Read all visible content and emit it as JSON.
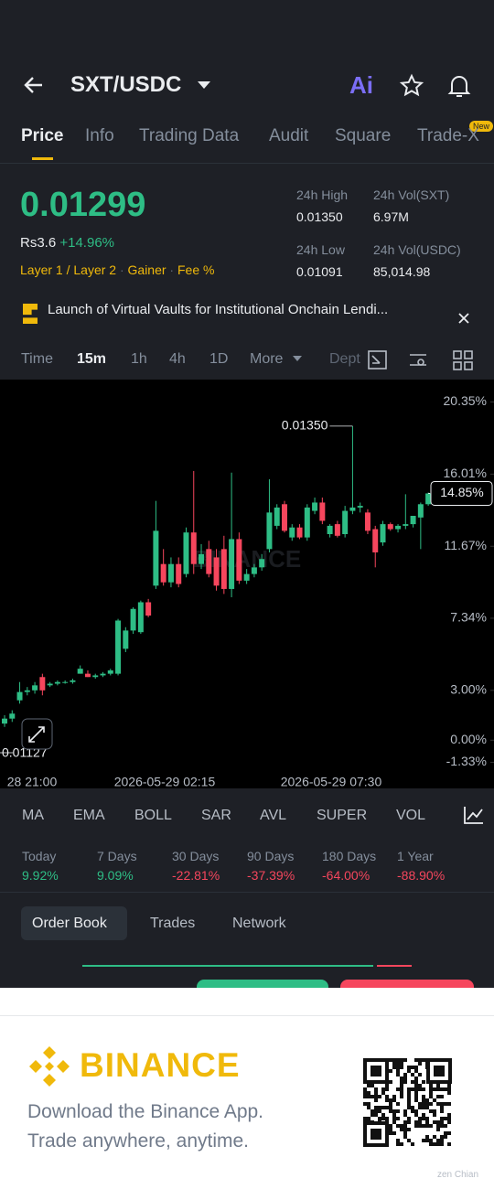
{
  "header": {
    "pair": "SXT/USDC",
    "ai": "Ai",
    "tabs": [
      "Price",
      "Info",
      "Trading Data",
      "Audit",
      "Square",
      "Trade-X"
    ],
    "new_badge": "New"
  },
  "price": {
    "last": "0.01299",
    "fiat": "Rs3.6",
    "change": "+14.96%",
    "tags": [
      "Layer 1 / Layer 2",
      "Gainer",
      "Fee %"
    ],
    "stats": [
      {
        "label": "24h High",
        "value": "0.01350"
      },
      {
        "label": "24h Vol(SXT)",
        "value": "6.97M"
      },
      {
        "label": "24h Low",
        "value": "0.01091"
      },
      {
        "label": "24h Vol(USDC)",
        "value": "85,014.98"
      }
    ]
  },
  "news": "Launch of Virtual Vaults for Institutional Onchain Lendi...",
  "intervals": [
    "Time",
    "15m",
    "1h",
    "4h",
    "1D",
    "More",
    "Dept"
  ],
  "chart_data": {
    "type": "candlestick",
    "up_color": "#2ebd85",
    "down_color": "#f6465d",
    "watermark": "BINANCE",
    "ylim": [
      -2.9,
      21.7
    ],
    "yticks": [
      {
        "value": 20.35,
        "label": "20.35%"
      },
      {
        "value": 16.01,
        "label": "16.01%"
      },
      {
        "value": 11.67,
        "label": "11.67%"
      },
      {
        "value": 7.34,
        "label": "7.34%"
      },
      {
        "value": 3.0,
        "label": "3.00%"
      },
      {
        "value": 0,
        "label": "0.00%"
      },
      {
        "value": -1.33,
        "label": "-1.33%"
      }
    ],
    "x_labels": [
      "28 21:00",
      "2026-05-29 02:15",
      "2026-05-29 07:30"
    ],
    "high_label": "0.01350",
    "low_label": "0.01127",
    "last_label": "14.85%",
    "open": [
      1.0,
      1.3,
      2.4,
      2.9,
      3.0,
      3.8,
      3.3,
      3.4,
      3.5,
      3.5,
      4.0,
      4.0,
      3.8,
      3.9,
      4.0,
      4.0,
      5.5,
      6.6,
      6.5,
      8.3,
      9.3,
      10.6,
      9.5,
      10.6,
      10.0,
      12.5,
      10.6,
      11.5,
      11.0,
      11.5,
      9.1,
      12.1,
      9.6,
      10.0,
      10.4,
      11.5,
      12.9,
      14.2,
      12.2,
      12.8,
      12.2,
      13.8,
      14.3,
      12.4,
      13.0,
      12.4,
      13.8,
      14.0,
      13.7,
      12.7,
      11.9,
      13.0,
      12.7,
      12.9,
      13.0,
      13.4,
      14.2
    ],
    "high": [
      1.5,
      1.8,
      3.5,
      3.2,
      3.5,
      4.0,
      3.5,
      3.6,
      3.6,
      3.7,
      4.5,
      4.2,
      4.0,
      4.1,
      4.3,
      7.3,
      6.8,
      8.0,
      8.4,
      8.5,
      14.4,
      11.5,
      11.0,
      11.0,
      12.8,
      16.2,
      11.8,
      12.0,
      11.5,
      12.3,
      16.1,
      12.5,
      10.3,
      10.6,
      11.2,
      15.7,
      14.2,
      14.4,
      13.0,
      13.0,
      14.2,
      14.6,
      14.6,
      13.0,
      13.2,
      14.1,
      18.9,
      14.3,
      13.9,
      12.9,
      13.2,
      13.1,
      13.0,
      14.8,
      13.5,
      14.3,
      14.9
    ],
    "low": [
      0.8,
      1.1,
      2.2,
      2.7,
      2.8,
      2.7,
      3.2,
      3.3,
      3.4,
      3.4,
      4.0,
      3.8,
      3.7,
      3.8,
      3.9,
      3.9,
      5.3,
      6.4,
      6.4,
      7.4,
      9.1,
      9.3,
      9.2,
      9.2,
      9.8,
      10.0,
      10.3,
      9.8,
      9.0,
      8.8,
      8.6,
      9.4,
      9.4,
      9.8,
      10.2,
      11.3,
      12.7,
      12.5,
      12.0,
      12.1,
      12.0,
      13.6,
      13.0,
      12.2,
      12.2,
      12.2,
      13.6,
      13.7,
      12.4,
      10.4,
      11.7,
      12.6,
      12.5,
      12.7,
      12.8,
      11.5,
      14.1
    ],
    "close": [
      1.3,
      1.6,
      2.9,
      3.0,
      3.3,
      3.0,
      3.4,
      3.5,
      3.5,
      3.6,
      4.3,
      3.8,
      3.9,
      4.0,
      4.2,
      7.2,
      6.6,
      7.9,
      8.3,
      7.5,
      12.6,
      9.5,
      10.6,
      9.4,
      12.5,
      10.6,
      11.2,
      10.0,
      9.3,
      9.1,
      12.1,
      9.6,
      10.0,
      10.4,
      10.9,
      13.7,
      14.0,
      12.6,
      12.8,
      12.2,
      14.0,
      14.3,
      13.2,
      12.9,
      12.3,
      13.8,
      14.0,
      14.1,
      12.6,
      11.3,
      13.0,
      12.7,
      12.9,
      13.0,
      13.5,
      14.2,
      14.85
    ]
  },
  "indicators": [
    "MA",
    "EMA",
    "BOLL",
    "SAR",
    "AVL",
    "SUPER",
    "VOL"
  ],
  "performance": [
    {
      "label": "Today",
      "value": "9.92%"
    },
    {
      "label": "7 Days",
      "value": "9.09%"
    },
    {
      "label": "30 Days",
      "value": "-22.81%"
    },
    {
      "label": "90 Days",
      "value": "-37.39%"
    },
    {
      "label": "180 Days",
      "value": "-64.00%"
    },
    {
      "label": "1 Year",
      "value": "-88.90%"
    }
  ],
  "order_tabs": [
    "Order Book",
    "Trades",
    "Network"
  ],
  "footer": {
    "brand": "BINANCE",
    "line1": "Download the Binance App.",
    "line2": "Trade anywhere, anytime.",
    "watermark": "zen Chian"
  }
}
